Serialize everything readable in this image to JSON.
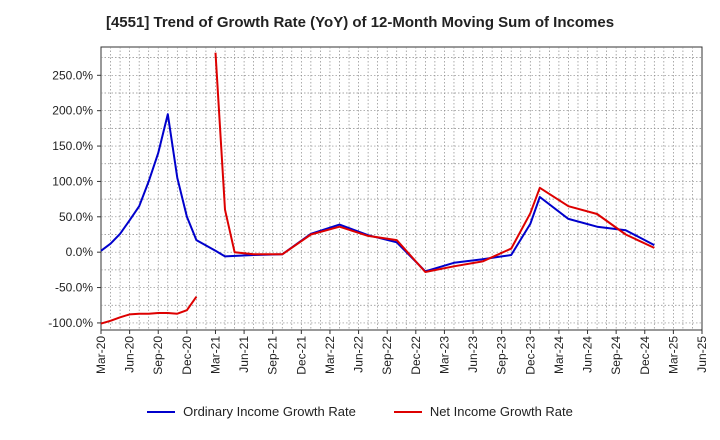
{
  "chart_data": {
    "type": "line",
    "title": "[4551]  Trend of Growth Rate (YoY) of 12-Month Moving Sum of Incomes",
    "xlabel": "",
    "ylabel": "",
    "ylim": [
      -110,
      290
    ],
    "yticks": [
      -100,
      -50,
      0,
      50,
      100,
      150,
      200,
      250
    ],
    "ytick_labels": [
      "-100.0%",
      "-50.0%",
      "0.0%",
      "50.0%",
      "100.0%",
      "150.0%",
      "200.0%",
      "250.0%"
    ],
    "grid": true,
    "legend_position": "bottom",
    "x_tick_labels": [
      "Mar-20",
      "Jun-20",
      "Sep-20",
      "Dec-20",
      "Mar-21",
      "Jun-21",
      "Sep-21",
      "Dec-21",
      "Mar-22",
      "Jun-22",
      "Sep-22",
      "Dec-22",
      "Mar-23",
      "Jun-23",
      "Sep-23",
      "Dec-23",
      "Mar-24",
      "Jun-24",
      "Sep-24",
      "Dec-24",
      "Mar-25",
      "Jun-25"
    ],
    "series": [
      {
        "name": "Ordinary Income Growth Rate",
        "color": "#0000cc",
        "points": [
          [
            0,
            2
          ],
          [
            1,
            12
          ],
          [
            2,
            26
          ],
          [
            3,
            45
          ],
          [
            4,
            65
          ],
          [
            5,
            100
          ],
          [
            6,
            140
          ],
          [
            7,
            195
          ],
          [
            8,
            105
          ],
          [
            9,
            50
          ],
          [
            10,
            17
          ],
          [
            12,
            2
          ],
          [
            13,
            -6
          ],
          [
            16,
            -4
          ],
          [
            19,
            -3
          ],
          [
            22,
            26
          ],
          [
            25,
            39
          ],
          [
            28,
            24
          ],
          [
            31,
            14
          ],
          [
            34,
            -27
          ],
          [
            37,
            -15
          ],
          [
            40,
            -10
          ],
          [
            42,
            -6
          ],
          [
            43,
            -4
          ],
          [
            45,
            40
          ],
          [
            46,
            78
          ],
          [
            49,
            47
          ],
          [
            52,
            36
          ],
          [
            55,
            31
          ],
          [
            58,
            10
          ]
        ]
      },
      {
        "name": "Net Income Growth Rate",
        "color": "#dd0000",
        "segments": [
          [
            [
              0,
              -101
            ],
            [
              1,
              -97
            ],
            [
              2,
              -92
            ],
            [
              3,
              -88
            ],
            [
              4,
              -87
            ],
            [
              5,
              -87
            ],
            [
              6,
              -86
            ],
            [
              7,
              -86
            ],
            [
              8,
              -87
            ],
            [
              9,
              -82
            ],
            [
              10,
              -63
            ]
          ],
          [
            [
              12,
              282
            ],
            [
              13,
              60
            ],
            [
              14,
              0
            ],
            [
              16,
              -3
            ],
            [
              19,
              -3
            ],
            [
              22,
              25
            ],
            [
              25,
              36
            ],
            [
              28,
              23
            ],
            [
              31,
              17
            ],
            [
              34,
              -28
            ],
            [
              37,
              -20
            ],
            [
              40,
              -13
            ],
            [
              43,
              5
            ],
            [
              45,
              55
            ],
            [
              46,
              91
            ],
            [
              49,
              65
            ],
            [
              52,
              54
            ],
            [
              55,
              25
            ],
            [
              58,
              6
            ]
          ]
        ]
      }
    ]
  }
}
